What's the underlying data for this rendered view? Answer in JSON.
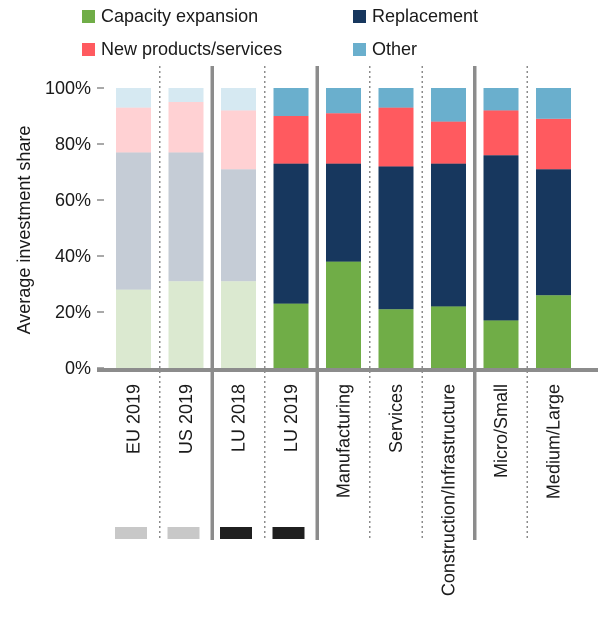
{
  "chart_data": {
    "type": "bar",
    "stacked": true,
    "ylabel": "Average investment share",
    "ylim": [
      0,
      100
    ],
    "yticks": [
      "0%",
      "20%",
      "40%",
      "60%",
      "80%",
      "100%"
    ],
    "categories": [
      "EU 2019",
      "US 2019",
      "LU 2018",
      "LU 2019",
      "Manufacturing",
      "Services",
      "Construction/Infrastructure",
      "Micro/Small",
      "Medium/Large"
    ],
    "faded_categories": [
      "EU 2019",
      "US 2019",
      "LU 2018"
    ],
    "series": [
      {
        "name": "Capacity expansion",
        "color": "#70ad47",
        "faded_color": "#dbe9d0",
        "values": [
          28,
          31,
          31,
          23,
          38,
          21,
          22,
          17,
          26
        ]
      },
      {
        "name": "Replacement",
        "color": "#17375e",
        "faded_color": "#c5ccd6",
        "values": [
          49,
          46,
          40,
          50,
          35,
          51,
          51,
          59,
          45
        ]
      },
      {
        "name": "New products/services",
        "color": "#ff5a5f",
        "faded_color": "#ffd1d3",
        "values": [
          16,
          18,
          21,
          17,
          18,
          21,
          15,
          16,
          18
        ]
      },
      {
        "name": "Other",
        "color": "#6aafcd",
        "faded_color": "#d6e9f2",
        "values": [
          7,
          5,
          8,
          10,
          9,
          7,
          12,
          8,
          11
        ]
      }
    ],
    "legend_placement": "top",
    "grid": false
  },
  "swatches": [
    {
      "color": "#c8c8c8"
    },
    {
      "color": "#c8c8c8"
    },
    {
      "color": "#1f1f1f"
    },
    {
      "color": "#1f1f1f"
    }
  ]
}
